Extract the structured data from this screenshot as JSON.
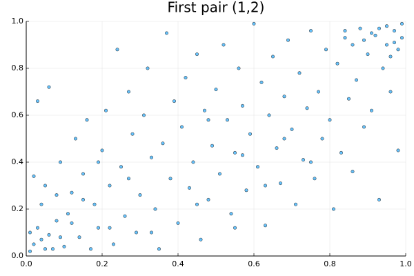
{
  "chart_data": {
    "type": "scatter",
    "title": "First pair (1,2)",
    "x": [
      0.01,
      0.02,
      0.03,
      0.05,
      0.04,
      0.06,
      0.08,
      0.02,
      0.1,
      0.12,
      0.03,
      0.06,
      0.09,
      0.11,
      0.14,
      0.15,
      0.16,
      0.13,
      0.18,
      0.19,
      0.2,
      0.21,
      0.22,
      0.23,
      0.24,
      0.25,
      0.26,
      0.27,
      0.28,
      0.29,
      0.3,
      0.31,
      0.32,
      0.33,
      0.34,
      0.35,
      0.36,
      0.37,
      0.38,
      0.39,
      0.4,
      0.41,
      0.42,
      0.43,
      0.44,
      0.45,
      0.46,
      0.47,
      0.48,
      0.49,
      0.5,
      0.51,
      0.52,
      0.53,
      0.54,
      0.55,
      0.56,
      0.57,
      0.58,
      0.59,
      0.6,
      0.61,
      0.62,
      0.63,
      0.64,
      0.65,
      0.66,
      0.67,
      0.68,
      0.69,
      0.7,
      0.71,
      0.72,
      0.73,
      0.74,
      0.75,
      0.76,
      0.77,
      0.78,
      0.79,
      0.8,
      0.81,
      0.82,
      0.83,
      0.84,
      0.85,
      0.86,
      0.87,
      0.88,
      0.89,
      0.9,
      0.91,
      0.92,
      0.93,
      0.94,
      0.95,
      0.96,
      0.97,
      0.98,
      0.99,
      0.97,
      0.95,
      0.93,
      0.99,
      0.98,
      0.96,
      0.91,
      0.89,
      0.86,
      0.84,
      0.07,
      0.09,
      0.04,
      0.01,
      0.12,
      0.17,
      0.15,
      0.22,
      0.05,
      0.08,
      0.33,
      0.27,
      0.19,
      0.45,
      0.55,
      0.63,
      0.75,
      0.68,
      0.57,
      0.48
    ],
    "values": [
      0.02,
      0.05,
      0.12,
      0.03,
      0.22,
      0.09,
      0.15,
      0.34,
      0.04,
      0.27,
      0.66,
      0.72,
      0.4,
      0.18,
      0.08,
      0.35,
      0.58,
      0.5,
      0.22,
      0.12,
      0.45,
      0.62,
      0.3,
      0.05,
      0.88,
      0.38,
      0.17,
      0.7,
      0.52,
      0.1,
      0.26,
      0.6,
      0.8,
      0.42,
      0.2,
      0.03,
      0.48,
      0.95,
      0.33,
      0.66,
      0.14,
      0.55,
      0.76,
      0.29,
      0.4,
      0.86,
      0.07,
      0.62,
      0.24,
      0.47,
      0.71,
      0.35,
      0.9,
      0.58,
      0.18,
      0.44,
      0.8,
      0.64,
      0.28,
      0.52,
      0.99,
      0.38,
      0.74,
      0.13,
      0.6,
      0.85,
      0.46,
      0.31,
      0.68,
      0.92,
      0.54,
      0.22,
      0.78,
      0.41,
      0.63,
      0.96,
      0.33,
      0.7,
      0.5,
      0.88,
      0.58,
      0.2,
      0.82,
      0.44,
      0.93,
      0.67,
      0.36,
      0.75,
      0.97,
      0.55,
      0.86,
      0.62,
      0.94,
      0.24,
      0.8,
      0.98,
      0.7,
      0.91,
      0.45,
      0.99,
      0.96,
      0.9,
      0.97,
      0.93,
      0.88,
      0.85,
      0.95,
      0.92,
      0.9,
      0.96,
      0.03,
      0.08,
      0.07,
      0.1,
      0.14,
      0.03,
      0.24,
      0.12,
      0.3,
      0.26,
      0.1,
      0.33,
      0.4,
      0.22,
      0.12,
      0.3,
      0.4,
      0.5,
      0.43,
      0.58
    ],
    "color": "#009afa",
    "xlim": [
      0,
      1
    ],
    "ylim": [
      0,
      1
    ],
    "xticks": [
      {
        "value": 0,
        "label": "0.0"
      },
      0.2,
      0.4,
      0.6,
      0.8,
      {
        "value": 1,
        "label": "1.0"
      }
    ],
    "yticks": [
      {
        "value": 0,
        "label": "0.0"
      },
      0.2,
      0.4,
      0.6,
      0.8,
      {
        "value": 1,
        "label": "1.0"
      }
    ],
    "grid": true
  }
}
